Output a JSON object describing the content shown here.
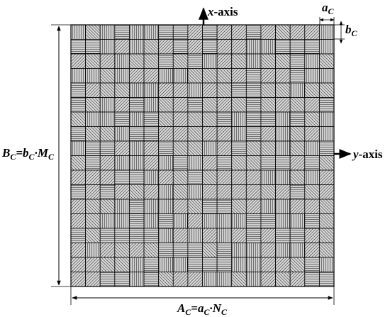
{
  "labels": {
    "x_axis": [
      "x",
      "-axis"
    ],
    "y_axis": [
      "y",
      "-axis"
    ],
    "cell_width": [
      "a",
      "C"
    ],
    "cell_height": [
      "b",
      "C"
    ],
    "total_height": [
      "B",
      "C",
      "=b",
      "C",
      "·M",
      "C"
    ],
    "total_width": [
      "A",
      "C",
      "=a",
      "C",
      "·N",
      "C"
    ]
  }
}
